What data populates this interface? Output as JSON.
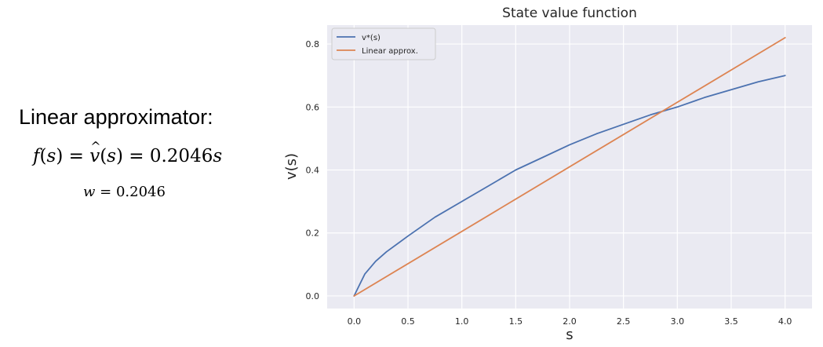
{
  "left_panel": {
    "heading": "Linear approximator:",
    "formula_lhs": "f",
    "formula_arg": "s",
    "formula_mid": "v",
    "formula_coef": "0.2046",
    "formula_var": "s",
    "weight_var": "w",
    "weight_value": "0.2046"
  },
  "chart_data": {
    "type": "line",
    "title": "State value function",
    "xlabel": "s",
    "ylabel": "v(s)",
    "xlim": [
      -0.25,
      4.25
    ],
    "ylim": [
      -0.04,
      0.86
    ],
    "xticks": [
      0.0,
      0.5,
      1.0,
      1.5,
      2.0,
      2.5,
      3.0,
      3.5,
      4.0
    ],
    "xtick_labels": [
      "0.0",
      "0.5",
      "1.0",
      "1.5",
      "2.0",
      "2.5",
      "3.0",
      "3.5",
      "4.0"
    ],
    "yticks": [
      0.0,
      0.2,
      0.4,
      0.6,
      0.8
    ],
    "ytick_labels": [
      "0.0",
      "0.2",
      "0.4",
      "0.6",
      "0.8"
    ],
    "grid": true,
    "legend_position": "top-left",
    "series": [
      {
        "name": "v*(s)",
        "color": "#4c72b0",
        "x": [
          0.0,
          0.05,
          0.1,
          0.2,
          0.3,
          0.5,
          0.75,
          1.0,
          1.25,
          1.5,
          1.75,
          2.0,
          2.25,
          2.5,
          2.75,
          3.0,
          3.25,
          3.5,
          3.75,
          4.0
        ],
        "y": [
          0.0,
          0.035,
          0.07,
          0.11,
          0.14,
          0.19,
          0.25,
          0.3,
          0.35,
          0.4,
          0.44,
          0.48,
          0.515,
          0.545,
          0.575,
          0.6,
          0.63,
          0.655,
          0.68,
          0.7
        ]
      },
      {
        "name": "Linear approx.",
        "color": "#dd8452",
        "x": [
          0.0,
          4.0
        ],
        "y": [
          0.0,
          0.82
        ]
      }
    ]
  }
}
